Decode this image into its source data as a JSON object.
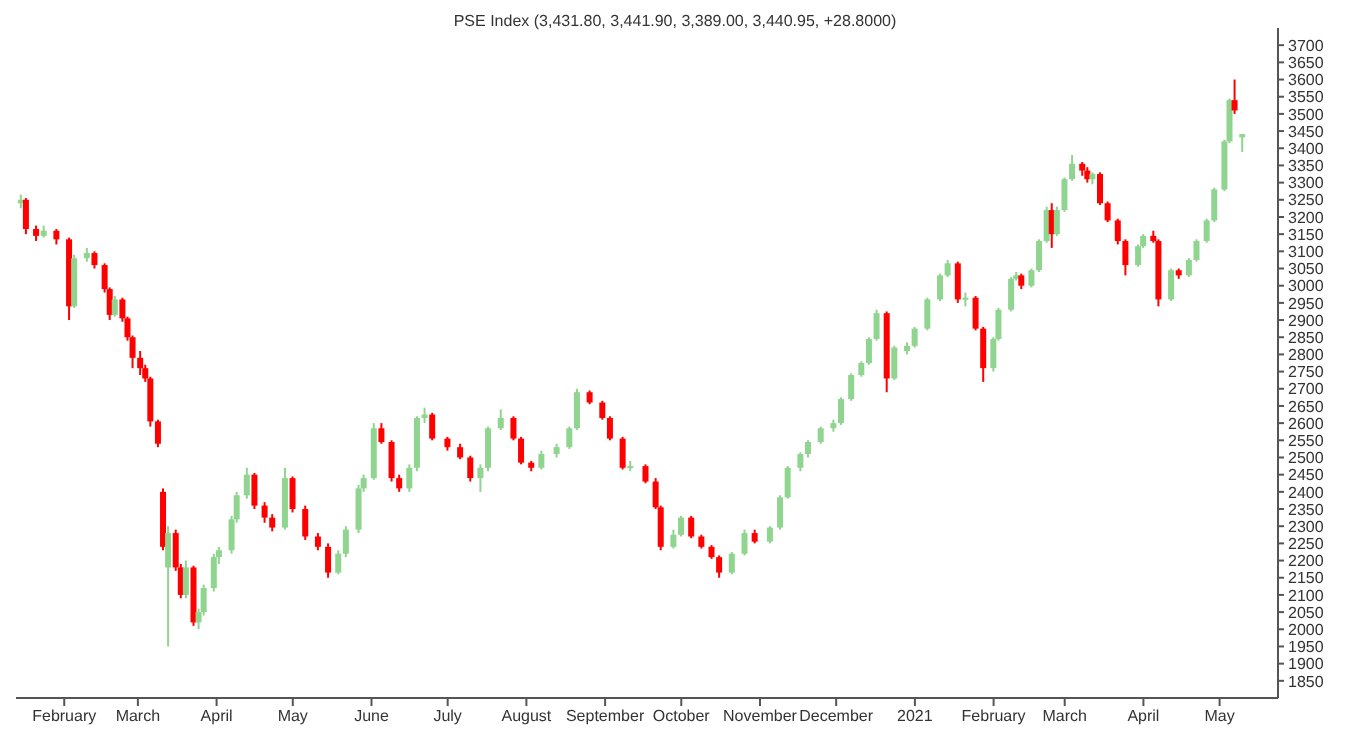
{
  "chart_data": {
    "type": "candlestick",
    "title": "PSE Index (3,431.80, 3,441.90, 3,389.00, 3,440.95, +28.8000)",
    "x": [
      "2020-01-15",
      "2020-01-17",
      "2020-01-21",
      "2020-01-24",
      "2020-01-29",
      "2020-02-03",
      "2020-02-05",
      "2020-02-10",
      "2020-02-13",
      "2020-02-17",
      "2020-02-19",
      "2020-02-21",
      "2020-02-24",
      "2020-02-26",
      "2020-02-28",
      "2020-03-02",
      "2020-03-04",
      "2020-03-06",
      "2020-03-09",
      "2020-03-11",
      "2020-03-13",
      "2020-03-16",
      "2020-03-18",
      "2020-03-20",
      "2020-03-23",
      "2020-03-25",
      "2020-03-27",
      "2020-03-31",
      "2020-04-02",
      "2020-04-07",
      "2020-04-09",
      "2020-04-13",
      "2020-04-16",
      "2020-04-20",
      "2020-04-23",
      "2020-04-28",
      "2020-05-01",
      "2020-05-06",
      "2020-05-11",
      "2020-05-15",
      "2020-05-19",
      "2020-05-22",
      "2020-05-27",
      "2020-05-29",
      "2020-06-02",
      "2020-06-05",
      "2020-06-09",
      "2020-06-12",
      "2020-06-16",
      "2020-06-19",
      "2020-06-22",
      "2020-06-25",
      "2020-07-01",
      "2020-07-06",
      "2020-07-10",
      "2020-07-14",
      "2020-07-17",
      "2020-07-22",
      "2020-07-27",
      "2020-07-30",
      "2020-08-03",
      "2020-08-07",
      "2020-08-13",
      "2020-08-18",
      "2020-08-21",
      "2020-08-26",
      "2020-08-31",
      "2020-09-03",
      "2020-09-08",
      "2020-09-11",
      "2020-09-17",
      "2020-09-21",
      "2020-09-23",
      "2020-09-28",
      "2020-10-01",
      "2020-10-05",
      "2020-10-09",
      "2020-10-13",
      "2020-10-16",
      "2020-10-21",
      "2020-10-26",
      "2020-10-30",
      "2020-11-05",
      "2020-11-09",
      "2020-11-12",
      "2020-11-17",
      "2020-11-20",
      "2020-11-25",
      "2020-11-30",
      "2020-12-03",
      "2020-12-07",
      "2020-12-11",
      "2020-12-14",
      "2020-12-17",
      "2020-12-21",
      "2020-12-24",
      "2020-12-29",
      "2021-01-01",
      "2021-01-06",
      "2021-01-11",
      "2021-01-14",
      "2021-01-18",
      "2021-01-21",
      "2021-01-25",
      "2021-01-28",
      "2021-02-01",
      "2021-02-03",
      "2021-02-08",
      "2021-02-10",
      "2021-02-12",
      "2021-02-16",
      "2021-02-19",
      "2021-02-22",
      "2021-02-24",
      "2021-02-26",
      "2021-03-01",
      "2021-03-04",
      "2021-03-08",
      "2021-03-10",
      "2021-03-12",
      "2021-03-15",
      "2021-03-18",
      "2021-03-22",
      "2021-03-25",
      "2021-03-30",
      "2021-04-01",
      "2021-04-05",
      "2021-04-07",
      "2021-04-12",
      "2021-04-15",
      "2021-04-19",
      "2021-04-22",
      "2021-04-26",
      "2021-04-29",
      "2021-05-03",
      "2021-05-05",
      "2021-05-07",
      "2021-05-10"
    ],
    "ohlc": [
      [
        3240,
        3265,
        3225,
        3250
      ],
      [
        3250,
        3255,
        3150,
        3165
      ],
      [
        3165,
        3175,
        3130,
        3145
      ],
      [
        3145,
        3175,
        3140,
        3160
      ],
      [
        3160,
        3165,
        3120,
        3135
      ],
      [
        3135,
        3140,
        2900,
        2940
      ],
      [
        2940,
        3090,
        2935,
        3080
      ],
      [
        3080,
        3110,
        3070,
        3095
      ],
      [
        3095,
        3100,
        3050,
        3060
      ],
      [
        3060,
        3065,
        2980,
        2990
      ],
      [
        2990,
        2995,
        2900,
        2915
      ],
      [
        2915,
        2970,
        2910,
        2960
      ],
      [
        2960,
        2965,
        2895,
        2905
      ],
      [
        2905,
        2910,
        2840,
        2850
      ],
      [
        2850,
        2855,
        2760,
        2790
      ],
      [
        2790,
        2810,
        2740,
        2760
      ],
      [
        2760,
        2770,
        2720,
        2730
      ],
      [
        2730,
        2735,
        2590,
        2605
      ],
      [
        2605,
        2610,
        2530,
        2540
      ],
      [
        2400,
        2410,
        2230,
        2240
      ],
      [
        2180,
        2300,
        1950,
        2280
      ],
      [
        2280,
        2290,
        2170,
        2180
      ],
      [
        2180,
        2190,
        2090,
        2100
      ],
      [
        2100,
        2200,
        2090,
        2180
      ],
      [
        2180,
        2185,
        2010,
        2020
      ],
      [
        2020,
        2060,
        2000,
        2050
      ],
      [
        2050,
        2130,
        2040,
        2120
      ],
      [
        2120,
        2220,
        2110,
        2210
      ],
      [
        2210,
        2240,
        2190,
        2230
      ],
      [
        2230,
        2330,
        2220,
        2320
      ],
      [
        2320,
        2400,
        2310,
        2390
      ],
      [
        2390,
        2470,
        2380,
        2450
      ],
      [
        2450,
        2455,
        2350,
        2360
      ],
      [
        2360,
        2370,
        2310,
        2325
      ],
      [
        2325,
        2335,
        2285,
        2296
      ],
      [
        2296,
        2470,
        2290,
        2440
      ],
      [
        2440,
        2445,
        2340,
        2350
      ],
      [
        2350,
        2360,
        2260,
        2270
      ],
      [
        2270,
        2280,
        2230,
        2240
      ],
      [
        2240,
        2250,
        2150,
        2165
      ],
      [
        2165,
        2230,
        2160,
        2220
      ],
      [
        2220,
        2300,
        2210,
        2290
      ],
      [
        2290,
        2420,
        2280,
        2410
      ],
      [
        2410,
        2450,
        2400,
        2440
      ],
      [
        2440,
        2600,
        2435,
        2585
      ],
      [
        2585,
        2600,
        2540,
        2545
      ],
      [
        2545,
        2550,
        2430,
        2440
      ],
      [
        2440,
        2450,
        2400,
        2410
      ],
      [
        2410,
        2480,
        2400,
        2470
      ],
      [
        2470,
        2620,
        2460,
        2615
      ],
      [
        2615,
        2645,
        2600,
        2625
      ],
      [
        2625,
        2630,
        2550,
        2555
      ],
      [
        2555,
        2560,
        2520,
        2530
      ],
      [
        2530,
        2540,
        2495,
        2500
      ],
      [
        2500,
        2505,
        2430,
        2440
      ],
      [
        2440,
        2480,
        2400,
        2470
      ],
      [
        2470,
        2590,
        2460,
        2585
      ],
      [
        2585,
        2640,
        2580,
        2615
      ],
      [
        2615,
        2620,
        2550,
        2555
      ],
      [
        2555,
        2560,
        2480,
        2485
      ],
      [
        2485,
        2490,
        2460,
        2470
      ],
      [
        2470,
        2520,
        2465,
        2510
      ],
      [
        2510,
        2540,
        2500,
        2530
      ],
      [
        2530,
        2590,
        2525,
        2585
      ],
      [
        2585,
        2700,
        2580,
        2690
      ],
      [
        2690,
        2695,
        2655,
        2660
      ],
      [
        2660,
        2665,
        2610,
        2615
      ],
      [
        2615,
        2620,
        2550,
        2555
      ],
      [
        2555,
        2560,
        2465,
        2470
      ],
      [
        2470,
        2490,
        2460,
        2475
      ],
      [
        2475,
        2480,
        2425,
        2430
      ],
      [
        2430,
        2440,
        2350,
        2355
      ],
      [
        2355,
        2360,
        2230,
        2240
      ],
      [
        2240,
        2290,
        2235,
        2275
      ],
      [
        2275,
        2330,
        2270,
        2325
      ],
      [
        2325,
        2330,
        2265,
        2270
      ],
      [
        2270,
        2275,
        2235,
        2240
      ],
      [
        2240,
        2245,
        2205,
        2210
      ],
      [
        2210,
        2215,
        2150,
        2165
      ],
      [
        2165,
        2225,
        2160,
        2220
      ],
      [
        2220,
        2290,
        2215,
        2280
      ],
      [
        2280,
        2290,
        2250,
        2255
      ],
      [
        2255,
        2300,
        2250,
        2296
      ],
      [
        2296,
        2390,
        2290,
        2384
      ],
      [
        2384,
        2475,
        2380,
        2470
      ],
      [
        2470,
        2515,
        2460,
        2510
      ],
      [
        2510,
        2550,
        2500,
        2545
      ],
      [
        2545,
        2590,
        2540,
        2585
      ],
      [
        2585,
        2610,
        2575,
        2600
      ],
      [
        2600,
        2675,
        2595,
        2670
      ],
      [
        2670,
        2745,
        2665,
        2740
      ],
      [
        2740,
        2780,
        2735,
        2775
      ],
      [
        2775,
        2850,
        2770,
        2845
      ],
      [
        2845,
        2930,
        2840,
        2920
      ],
      [
        2920,
        2925,
        2690,
        2730
      ],
      [
        2730,
        2825,
        2725,
        2820
      ],
      [
        2810,
        2835,
        2800,
        2825
      ],
      [
        2825,
        2880,
        2820,
        2875
      ],
      [
        2875,
        2965,
        2870,
        2960
      ],
      [
        2960,
        3035,
        2955,
        3030
      ],
      [
        3030,
        3075,
        3025,
        3065
      ],
      [
        3065,
        3070,
        2950,
        2960
      ],
      [
        2960,
        2980,
        2940,
        2965
      ],
      [
        2965,
        2970,
        2870,
        2875
      ],
      [
        2875,
        2880,
        2720,
        2760
      ],
      [
        2760,
        2850,
        2750,
        2845
      ],
      [
        2845,
        2935,
        2840,
        2930
      ],
      [
        2930,
        3025,
        2925,
        3020
      ],
      [
        3020,
        3040,
        3015,
        3030
      ],
      [
        3030,
        3035,
        2990,
        3000
      ],
      [
        3000,
        3050,
        2995,
        3045
      ],
      [
        3045,
        3135,
        3040,
        3130
      ],
      [
        3130,
        3230,
        3125,
        3220
      ],
      [
        3220,
        3240,
        3110,
        3150
      ],
      [
        3150,
        3230,
        3145,
        3220
      ],
      [
        3220,
        3315,
        3215,
        3310
      ],
      [
        3310,
        3380,
        3305,
        3355
      ],
      [
        3355,
        3360,
        3320,
        3335
      ],
      [
        3335,
        3345,
        3300,
        3310
      ],
      [
        3310,
        3330,
        3295,
        3325
      ],
      [
        3325,
        3330,
        3235,
        3240
      ],
      [
        3240,
        3245,
        3185,
        3190
      ],
      [
        3190,
        3195,
        3120,
        3130
      ],
      [
        3130,
        3135,
        3030,
        3060
      ],
      [
        3060,
        3120,
        3055,
        3115
      ],
      [
        3115,
        3150,
        3110,
        3145
      ],
      [
        3145,
        3160,
        3125,
        3130
      ],
      [
        3130,
        3135,
        2940,
        2960
      ],
      [
        2960,
        3050,
        2955,
        3045
      ],
      [
        3045,
        3050,
        3020,
        3030
      ],
      [
        3030,
        3080,
        3025,
        3075
      ],
      [
        3075,
        3135,
        3070,
        3130
      ],
      [
        3130,
        3195,
        3125,
        3190
      ],
      [
        3190,
        3285,
        3185,
        3280
      ],
      [
        3280,
        3425,
        3275,
        3420
      ],
      [
        3420,
        3545,
        3415,
        3540
      ],
      [
        3540,
        3600,
        3500,
        3510
      ],
      [
        3431.8,
        3441.9,
        3389,
        3440.95
      ]
    ],
    "xlim": [
      "2020-01-13",
      "2021-05-24"
    ],
    "xticks": [
      {
        "value": "2020-02-01",
        "label": "February"
      },
      {
        "value": "2020-03-01",
        "label": "March"
      },
      {
        "value": "2020-04-01",
        "label": "April"
      },
      {
        "value": "2020-05-01",
        "label": "May"
      },
      {
        "value": "2020-06-01",
        "label": "June"
      },
      {
        "value": "2020-07-01",
        "label": "July"
      },
      {
        "value": "2020-08-01",
        "label": "August"
      },
      {
        "value": "2020-09-01",
        "label": "September"
      },
      {
        "value": "2020-10-01",
        "label": "October"
      },
      {
        "value": "2020-11-01",
        "label": "November"
      },
      {
        "value": "2020-12-01",
        "label": "December"
      },
      {
        "value": "2021-01-01",
        "label": "2021"
      },
      {
        "value": "2021-02-01",
        "label": "February"
      },
      {
        "value": "2021-03-01",
        "label": "March"
      },
      {
        "value": "2021-04-01",
        "label": "April"
      },
      {
        "value": "2021-05-01",
        "label": "May"
      }
    ],
    "ylim": [
      1800,
      3750
    ],
    "yticks": [
      1850,
      1900,
      1950,
      2000,
      2050,
      2100,
      2150,
      2200,
      2250,
      2300,
      2350,
      2400,
      2450,
      2500,
      2550,
      2600,
      2650,
      2700,
      2750,
      2800,
      2850,
      2900,
      2950,
      3000,
      3050,
      3100,
      3150,
      3200,
      3250,
      3300,
      3350,
      3400,
      3450,
      3500,
      3550,
      3600,
      3650,
      3700
    ],
    "grid": false,
    "colors": [
      "#8fd48f",
      "#ff0000",
      "#ff0000",
      "#8fd48f",
      "#ff0000",
      "#ff0000",
      "#8fd48f",
      "#8fd48f",
      "#ff0000",
      "#ff0000",
      "#ff0000",
      "#8fd48f",
      "#ff0000",
      "#ff0000",
      "#ff0000",
      "#ff0000",
      "#ff0000",
      "#ff0000",
      "#ff0000",
      "#ff0000",
      "#8fd48f",
      "#ff0000",
      "#ff0000",
      "#8fd48f",
      "#ff0000",
      "#8fd48f",
      "#8fd48f",
      "#8fd48f",
      "#8fd48f",
      "#8fd48f",
      "#8fd48f",
      "#8fd48f",
      "#ff0000",
      "#ff0000",
      "#ff0000",
      "#8fd48f",
      "#ff0000",
      "#ff0000",
      "#ff0000",
      "#ff0000",
      "#8fd48f",
      "#8fd48f",
      "#8fd48f",
      "#8fd48f",
      "#8fd48f",
      "#ff0000",
      "#ff0000",
      "#ff0000",
      "#8fd48f",
      "#8fd48f",
      "#8fd48f",
      "#ff0000",
      "#ff0000",
      "#ff0000",
      "#ff0000",
      "#8fd48f",
      "#8fd48f",
      "#8fd48f",
      "#ff0000",
      "#ff0000",
      "#ff0000",
      "#8fd48f",
      "#8fd48f",
      "#8fd48f",
      "#8fd48f",
      "#ff0000",
      "#ff0000",
      "#ff0000",
      "#ff0000",
      "#8fd48f",
      "#ff0000",
      "#ff0000",
      "#ff0000",
      "#8fd48f",
      "#8fd48f",
      "#ff0000",
      "#ff0000",
      "#ff0000",
      "#ff0000",
      "#8fd48f",
      "#8fd48f",
      "#ff0000",
      "#8fd48f",
      "#8fd48f",
      "#8fd48f",
      "#8fd48f",
      "#8fd48f",
      "#8fd48f",
      "#8fd48f",
      "#8fd48f",
      "#8fd48f",
      "#8fd48f",
      "#8fd48f",
      "#8fd48f",
      "#ff0000",
      "#8fd48f",
      "#8fd48f",
      "#8fd48f",
      "#8fd48f",
      "#8fd48f",
      "#8fd48f",
      "#ff0000",
      "#8fd48f",
      "#ff0000",
      "#ff0000",
      "#8fd48f",
      "#8fd48f",
      "#8fd48f",
      "#8fd48f",
      "#ff0000",
      "#8fd48f",
      "#8fd48f",
      "#8fd48f",
      "#ff0000",
      "#8fd48f",
      "#8fd48f",
      "#8fd48f",
      "#ff0000",
      "#ff0000",
      "#8fd48f",
      "#ff0000",
      "#ff0000",
      "#ff0000",
      "#ff0000",
      "#8fd48f",
      "#8fd48f",
      "#ff0000",
      "#ff0000",
      "#8fd48f",
      "#ff0000",
      "#8fd48f",
      "#8fd48f",
      "#8fd48f",
      "#8fd48f",
      "#8fd48f",
      "#8fd48f",
      "#ff0000",
      "#8fd48f"
    ]
  }
}
